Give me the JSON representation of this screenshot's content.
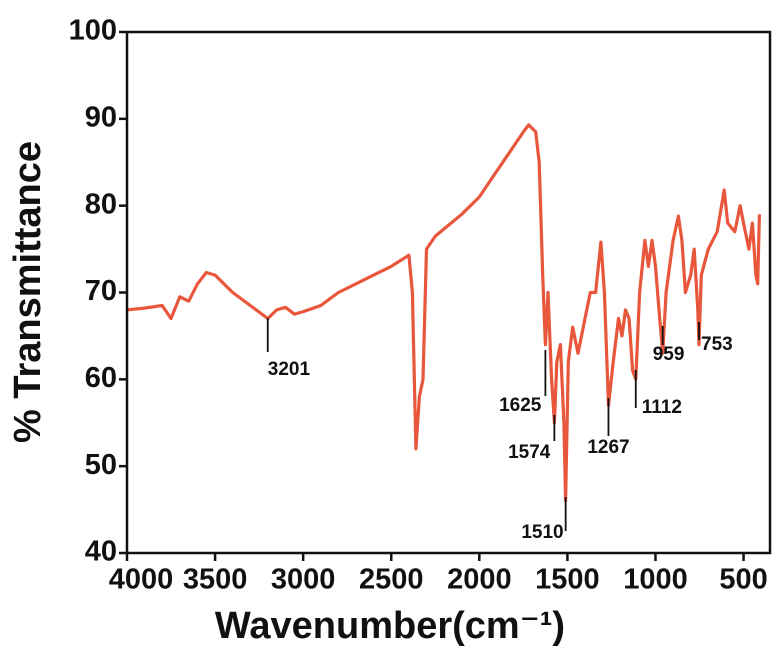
{
  "chart_data": {
    "type": "line",
    "xlabel": "Wavenumber(cm⁻¹)",
    "ylabel": "% Transmittance",
    "xlim": [
      4000,
      350
    ],
    "ylim": [
      40,
      100
    ],
    "xticks": [
      4000,
      3500,
      3000,
      2500,
      2000,
      1500,
      1000,
      500
    ],
    "yticks": [
      40,
      50,
      60,
      70,
      80,
      90,
      100
    ],
    "color": "#e8573b",
    "x": [
      4000,
      3900,
      3800,
      3750,
      3700,
      3650,
      3600,
      3550,
      3500,
      3450,
      3400,
      3300,
      3201,
      3150,
      3100,
      3050,
      3000,
      2900,
      2800,
      2700,
      2600,
      2500,
      2400,
      2380,
      2360,
      2340,
      2320,
      2300,
      2250,
      2100,
      2000,
      1900,
      1800,
      1750,
      1720,
      1680,
      1660,
      1640,
      1625,
      1610,
      1590,
      1574,
      1560,
      1540,
      1520,
      1510,
      1495,
      1470,
      1440,
      1400,
      1370,
      1340,
      1310,
      1290,
      1267,
      1240,
      1210,
      1190,
      1170,
      1150,
      1130,
      1112,
      1090,
      1060,
      1040,
      1020,
      1000,
      980,
      959,
      940,
      900,
      870,
      850,
      830,
      800,
      780,
      760,
      753,
      740,
      700,
      650,
      610,
      590,
      550,
      520,
      490,
      470,
      450,
      430,
      420,
      410
    ],
    "values": [
      68,
      68.2,
      68.5,
      67,
      69.5,
      69,
      71,
      72.3,
      72,
      71,
      70,
      68.5,
      67,
      68,
      68.3,
      67.5,
      67.8,
      68.5,
      70,
      71,
      72,
      73,
      74.3,
      70,
      52,
      58,
      60,
      75,
      76.5,
      79,
      81,
      84,
      87,
      88.5,
      89.3,
      88.5,
      85,
      72,
      64,
      70,
      60,
      55,
      62,
      64,
      55,
      46,
      62,
      66,
      63,
      67,
      70,
      70,
      75.8,
      70,
      57,
      62,
      67,
      65,
      68,
      67,
      61,
      60,
      70,
      76,
      73,
      76,
      73,
      68,
      63,
      70,
      76,
      78.8,
      76,
      70,
      72,
      75,
      68,
      64,
      72,
      75,
      77,
      81.8,
      78,
      77,
      80,
      77,
      75,
      78,
      72,
      71,
      79
    ],
    "annotations": [
      3201,
      1625,
      1574,
      1510,
      1267,
      1112,
      959,
      753
    ]
  }
}
